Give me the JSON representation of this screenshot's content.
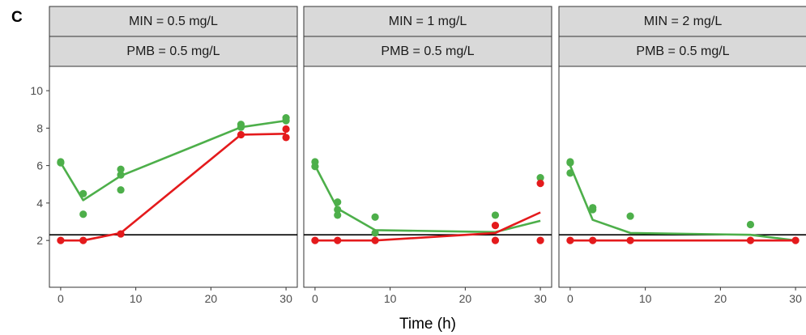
{
  "panel_label": "C",
  "colors": {
    "green": "#4daf4a",
    "red": "#e41a1c",
    "threshold": "#000000"
  },
  "chart_data": {
    "type": "line",
    "xlabel": "Time (h)",
    "ylabel": "",
    "xlim": [
      -1.5,
      31.5
    ],
    "ylim": [
      -0.5,
      11.3
    ],
    "xticks": [
      0,
      10,
      20,
      30
    ],
    "yticks": [
      2,
      4,
      6,
      8,
      10
    ],
    "threshold": 2.3,
    "grid": false,
    "panels": [
      {
        "strip_top": "MIN = 0.5 mg/L",
        "strip_bottom": "PMB = 0.5 mg/L",
        "green_points": [
          [
            0,
            6.2
          ],
          [
            0,
            6.15
          ],
          [
            3,
            4.5
          ],
          [
            3,
            3.4
          ],
          [
            8,
            5.8
          ],
          [
            8,
            5.5
          ],
          [
            8,
            4.7
          ],
          [
            24,
            8.2
          ],
          [
            24,
            8.05
          ],
          [
            30,
            8.55
          ],
          [
            30,
            8.4
          ]
        ],
        "red_points": [
          [
            0,
            2.0
          ],
          [
            3,
            2.0
          ],
          [
            8,
            2.35
          ],
          [
            24,
            7.65
          ],
          [
            30,
            7.95
          ],
          [
            30,
            7.5
          ]
        ],
        "green_line": [
          [
            0,
            6.15
          ],
          [
            3,
            4.15
          ],
          [
            8,
            5.45
          ],
          [
            24,
            8.05
          ],
          [
            30,
            8.4
          ]
        ],
        "red_line": [
          [
            0,
            2.0
          ],
          [
            3,
            2.0
          ],
          [
            8,
            2.4
          ],
          [
            24,
            7.65
          ],
          [
            30,
            7.7
          ]
        ]
      },
      {
        "strip_top": "MIN = 1 mg/L",
        "strip_bottom": "PMB = 0.5 mg/L",
        "green_points": [
          [
            0,
            6.2
          ],
          [
            0,
            5.95
          ],
          [
            3,
            4.05
          ],
          [
            3,
            3.65
          ],
          [
            3,
            3.35
          ],
          [
            8,
            3.25
          ],
          [
            8,
            2.4
          ],
          [
            24,
            3.35
          ],
          [
            30,
            5.35
          ]
        ],
        "red_points": [
          [
            0,
            2.0
          ],
          [
            3,
            2.0
          ],
          [
            8,
            2.0
          ],
          [
            24,
            2.0
          ],
          [
            24,
            2.8
          ],
          [
            30,
            5.05
          ],
          [
            30,
            2.0
          ]
        ],
        "green_line": [
          [
            0,
            6.0
          ],
          [
            3,
            3.7
          ],
          [
            8,
            2.55
          ],
          [
            24,
            2.45
          ],
          [
            30,
            3.05
          ]
        ],
        "red_line": [
          [
            0,
            2.0
          ],
          [
            3,
            2.0
          ],
          [
            8,
            2.0
          ],
          [
            24,
            2.4
          ],
          [
            30,
            3.5
          ]
        ]
      },
      {
        "strip_top": "MIN = 2 mg/L",
        "strip_bottom": "PMB = 0.5 mg/L",
        "green_points": [
          [
            0,
            6.2
          ],
          [
            0,
            6.15
          ],
          [
            0,
            5.6
          ],
          [
            3,
            3.75
          ],
          [
            3,
            3.65
          ],
          [
            8,
            3.3
          ],
          [
            24,
            2.85
          ]
        ],
        "red_points": [
          [
            0,
            2.0
          ],
          [
            3,
            2.0
          ],
          [
            8,
            2.0
          ],
          [
            24,
            2.0
          ],
          [
            30,
            2.0
          ]
        ],
        "green_line": [
          [
            0,
            6.0
          ],
          [
            3,
            3.1
          ],
          [
            8,
            2.4
          ],
          [
            24,
            2.3
          ],
          [
            30,
            2.0
          ]
        ],
        "red_line": [
          [
            0,
            2.0
          ],
          [
            3,
            2.0
          ],
          [
            8,
            2.0
          ],
          [
            24,
            2.0
          ],
          [
            30,
            2.0
          ]
        ]
      }
    ]
  }
}
